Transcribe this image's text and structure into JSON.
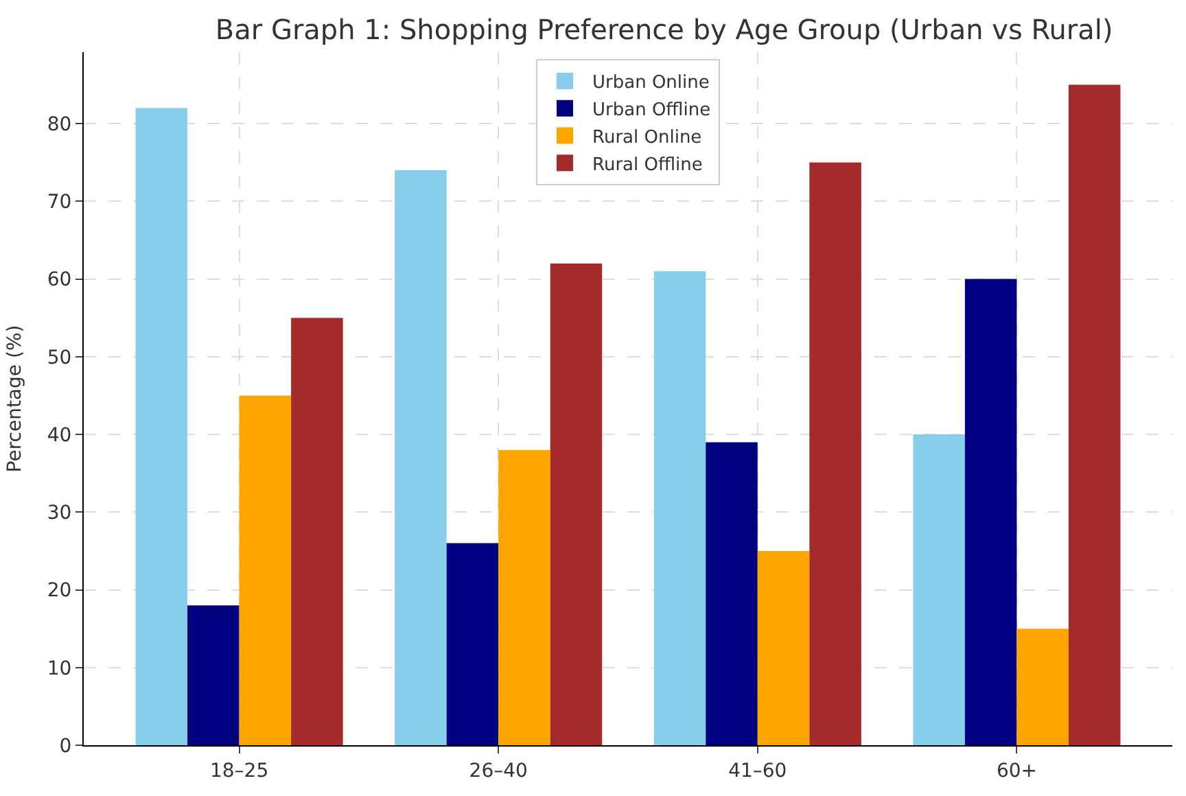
{
  "chart_data": {
    "type": "bar",
    "title": "Bar Graph 1: Shopping Preference by Age Group (Urban vs Rural)",
    "ylabel": "Percentage (%)",
    "categories": [
      "18–25",
      "26–40",
      "41–60",
      "60+"
    ],
    "series": [
      {
        "name": "Urban Online",
        "color": "#87ceeb",
        "values": [
          82,
          74,
          61,
          40
        ]
      },
      {
        "name": "Urban Offline",
        "color": "#000080",
        "values": [
          18,
          26,
          39,
          60
        ]
      },
      {
        "name": "Rural Online",
        "color": "#ffa500",
        "values": [
          45,
          38,
          25,
          15
        ]
      },
      {
        "name": "Rural Offline",
        "color": "#a52a2a",
        "values": [
          55,
          62,
          75,
          85
        ]
      }
    ],
    "ylim": [
      0,
      89.2
    ],
    "yticks": [
      0,
      10,
      20,
      30,
      40,
      50,
      60,
      70,
      80
    ],
    "grid": true,
    "legend": "top"
  }
}
